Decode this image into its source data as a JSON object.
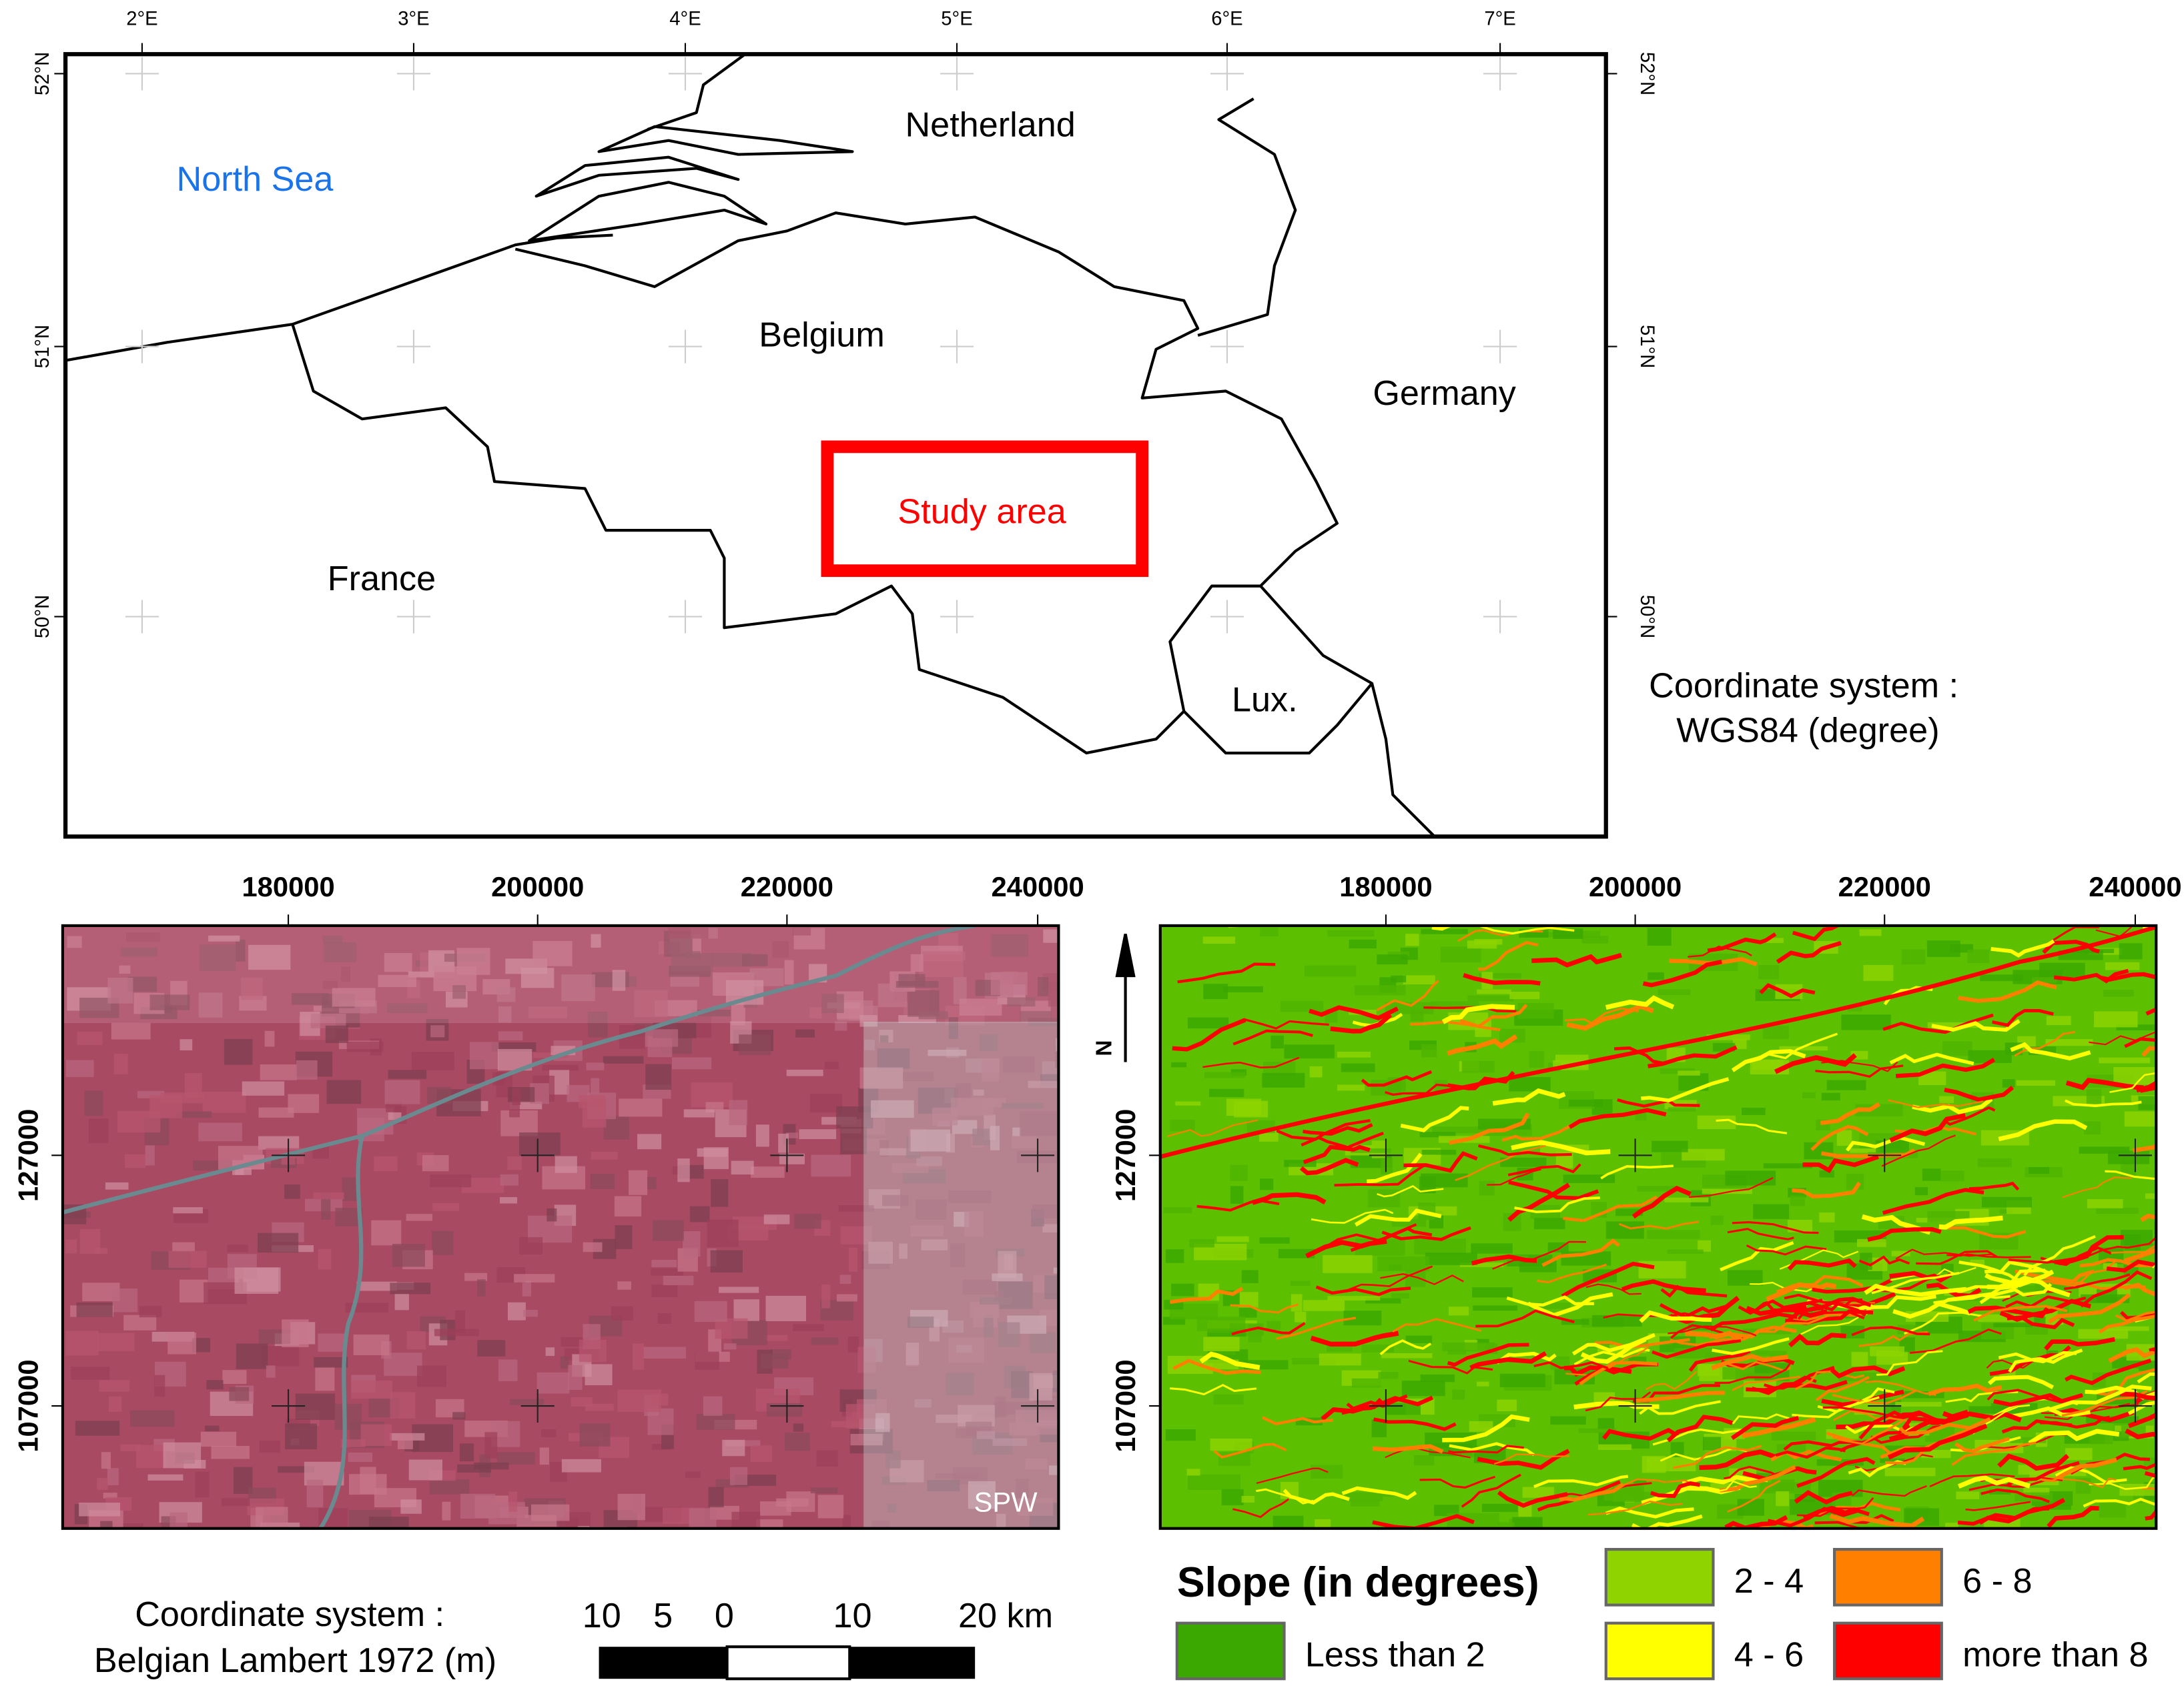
{
  "top_map": {
    "lon_labels": [
      "2°E",
      "3°E",
      "4°E",
      "5°E",
      "6°E",
      "7°E"
    ],
    "lat_labels": [
      "52°N",
      "51°N",
      "50°N"
    ],
    "places": {
      "sea": "North Sea",
      "netherlands": "Netherland",
      "belgium": "Belgium",
      "germany": "Germany",
      "france": "France",
      "luxembourg": "Lux."
    },
    "study_area": "Study area",
    "coordinate_system": [
      "Coordinate system :",
      "WGS84 (degree)"
    ]
  },
  "left_map": {
    "x_labels": [
      "180000",
      "200000",
      "220000",
      "240000"
    ],
    "y_labels": [
      "127000",
      "107000"
    ],
    "credit": "SPW",
    "coordinate_system": [
      "Coordinate system :",
      "Belgian Lambert 1972 (m)"
    ],
    "scale_bar": [
      "10",
      "5",
      "0",
      "10",
      "20 km"
    ]
  },
  "right_map": {
    "x_labels": [
      "180000",
      "200000",
      "220000",
      "240000"
    ],
    "y_labels": [
      "127000",
      "107000"
    ],
    "north": "N",
    "legend": {
      "title": "Slope (in degrees)",
      "items": [
        {
          "label": "Less than 2",
          "color": "#3aa800"
        },
        {
          "label": "2 - 4",
          "color": "#8fd400"
        },
        {
          "label": "4 - 6",
          "color": "#ffff00"
        },
        {
          "label": "6 - 8",
          "color": "#ff8000"
        },
        {
          "label": "more than 8",
          "color": "#ff0000"
        }
      ]
    }
  }
}
